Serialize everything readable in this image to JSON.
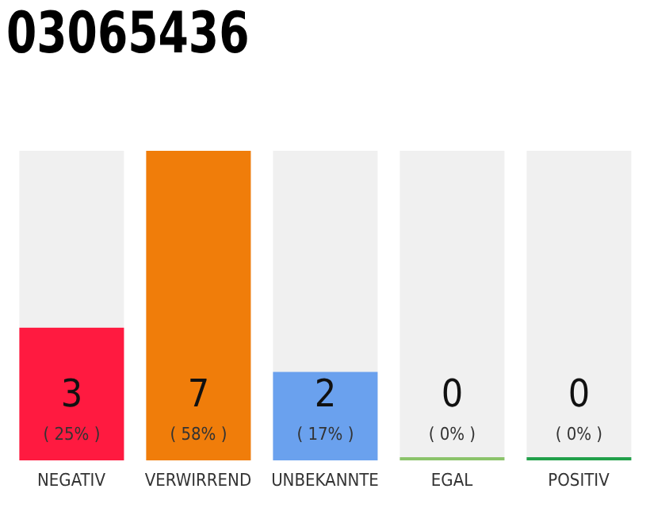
{
  "chart_data": {
    "type": "bar",
    "title": "03065436",
    "categories": [
      "NEGATIV",
      "VERWIRREND",
      "UNBEKANNTE",
      "EGAL",
      "POSITIV"
    ],
    "values": [
      3,
      7,
      2,
      0,
      0
    ],
    "colors": [
      "#ff1a40",
      "#f07d0a",
      "#6aa1ee",
      "#8bc36a",
      "#22a04a"
    ],
    "tick_labels": "x",
    "grid": false,
    "legend": false,
    "value_labels": [
      "3\n( 25% )",
      "7\n( 58% )",
      "2\n( 17% )",
      "0\n( 0% )",
      "0\n( 0% )"
    ]
  }
}
